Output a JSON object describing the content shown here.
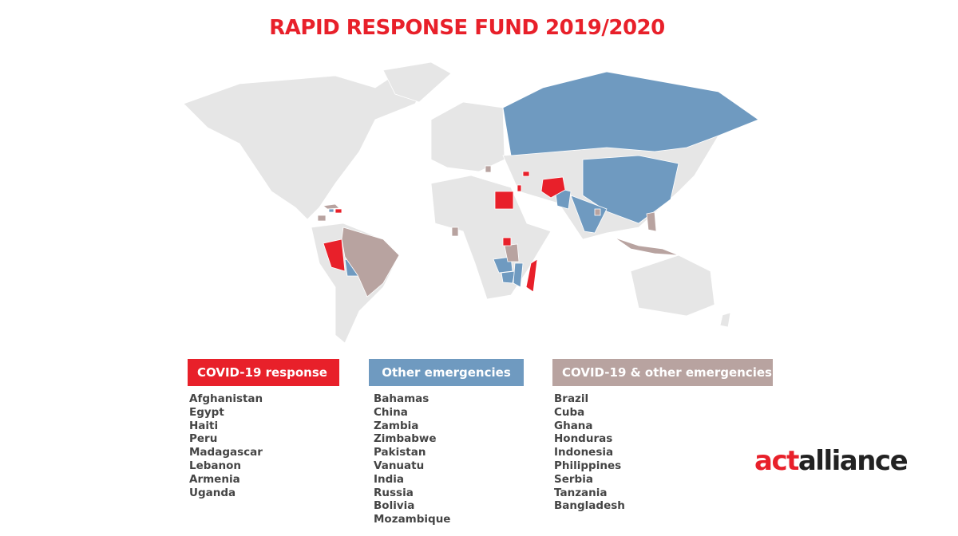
{
  "header": {
    "title": "RAPID RESPONSE FUND  2019/2020"
  },
  "legend": [
    {
      "heading": "COVID-19 response",
      "countries": [
        "Afghanistan",
        "Egypt",
        "Haiti",
        "Peru",
        "Madagascar",
        "Lebanon",
        "Armenia",
        "Uganda"
      ]
    },
    {
      "heading": "Other emergencies",
      "countries": [
        "Bahamas",
        "China",
        "Zambia",
        "Zimbabwe",
        "Pakistan",
        "Vanuatu",
        "India",
        "Russia",
        "Bolivia",
        "Mozambique"
      ]
    },
    {
      "heading": "COVID-19 & other emergencies",
      "countries": [
        "Brazil",
        "Cuba",
        "Ghana",
        "Honduras",
        "Indonesia",
        "Philippines",
        "Serbia",
        "Tanzania",
        "Bangladesh"
      ]
    }
  ],
  "logo": {
    "first": "act",
    "second": "alliance"
  }
}
